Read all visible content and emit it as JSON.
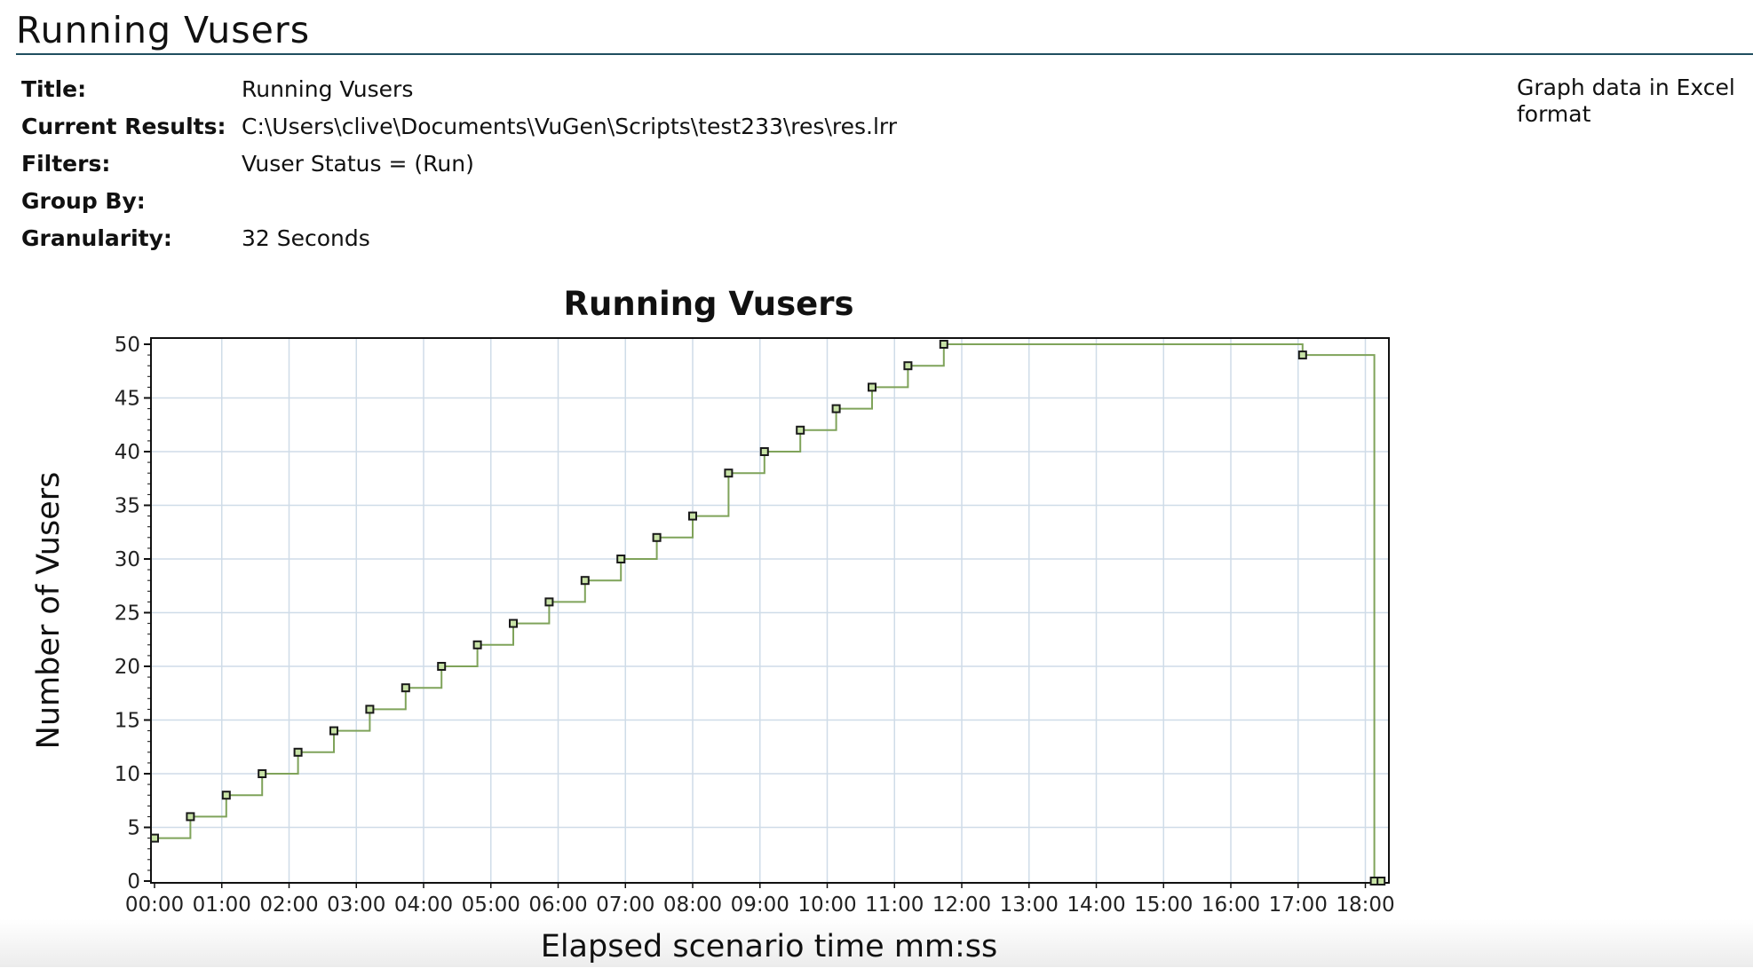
{
  "page": {
    "title": "Running Vusers"
  },
  "meta": [
    {
      "label": "Title:",
      "value": "Running Vusers"
    },
    {
      "label": "Current Results:",
      "value": "C:\\Users\\clive\\Documents\\VuGen\\Scripts\\test233\\res\\res.lrr"
    },
    {
      "label": "Filters:",
      "value": "Vuser Status = (Run)"
    },
    {
      "label": "Group By:",
      "value": ""
    },
    {
      "label": "Granularity:",
      "value": "32 Seconds"
    }
  ],
  "excel_link": "Graph data in Excel format",
  "chart_data": {
    "type": "line",
    "step": true,
    "title": "Running Vusers",
    "xlabel": "Elapsed scenario time mm:ss",
    "ylabel": "Number of Vusers",
    "xlim_seconds": [
      0,
      1104
    ],
    "ylim": [
      0,
      50
    ],
    "yticks": [
      0,
      5,
      10,
      15,
      20,
      25,
      30,
      35,
      40,
      45,
      50
    ],
    "xticks": [
      "00:00",
      "01:00",
      "02:00",
      "03:00",
      "04:00",
      "05:00",
      "06:00",
      "07:00",
      "08:00",
      "09:00",
      "10:00",
      "11:00",
      "12:00",
      "13:00",
      "14:00",
      "15:00",
      "16:00",
      "17:00",
      "18:00"
    ],
    "grid": true,
    "colors": {
      "line": "#7fa35a",
      "marker_fill": "#c8e3a6",
      "marker_stroke": "#1a1a1a",
      "grid": "#cfdce8",
      "frame": "#111111"
    },
    "series": [
      {
        "points": [
          [
            "00:00",
            4
          ],
          [
            "00:32",
            6
          ],
          [
            "01:04",
            8
          ],
          [
            "01:36",
            10
          ],
          [
            "02:08",
            12
          ],
          [
            "02:40",
            14
          ],
          [
            "03:12",
            16
          ],
          [
            "03:44",
            18
          ],
          [
            "04:16",
            20
          ],
          [
            "04:48",
            22
          ],
          [
            "05:20",
            24
          ],
          [
            "05:52",
            26
          ],
          [
            "06:24",
            28
          ],
          [
            "06:56",
            30
          ],
          [
            "07:28",
            32
          ],
          [
            "08:00",
            34
          ],
          [
            "08:32",
            38
          ],
          [
            "09:04",
            40
          ],
          [
            "09:36",
            42
          ],
          [
            "10:08",
            44
          ],
          [
            "10:40",
            46
          ],
          [
            "11:12",
            48
          ],
          [
            "11:44",
            50
          ],
          [
            "17:04",
            49
          ],
          [
            "18:08",
            0
          ],
          [
            "18:14",
            0
          ]
        ]
      }
    ]
  }
}
